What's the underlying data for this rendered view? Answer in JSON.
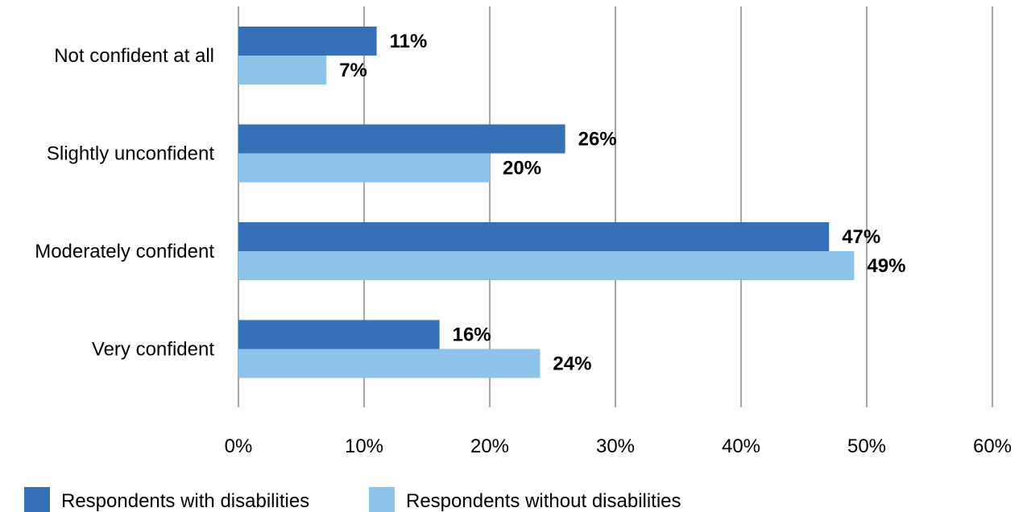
{
  "chart_data": {
    "type": "bar",
    "orientation": "horizontal",
    "categories": [
      "Not confident at all",
      "Slightly unconfident",
      "Moderately confident",
      "Very confident"
    ],
    "series": [
      {
        "name": "Respondents with disabilities",
        "values": [
          11,
          26,
          47,
          16
        ],
        "labels": [
          "11%",
          "26%",
          "47%",
          "16%"
        ],
        "color": "#3570b8"
      },
      {
        "name": "Respondents without disabilities",
        "values": [
          7,
          20,
          49,
          24
        ],
        "labels": [
          "7%",
          "20%",
          "49%",
          "24%"
        ],
        "color": "#8dc3ea"
      }
    ],
    "xlim": [
      0,
      60
    ],
    "xticks": [
      0,
      10,
      20,
      30,
      40,
      50,
      60
    ],
    "xtick_labels": [
      "0%",
      "10%",
      "20%",
      "30%",
      "40%",
      "50%",
      "60%"
    ],
    "grid": "vertical",
    "gridline_color": "#a6a6a6",
    "legend_position": "bottom-left"
  }
}
